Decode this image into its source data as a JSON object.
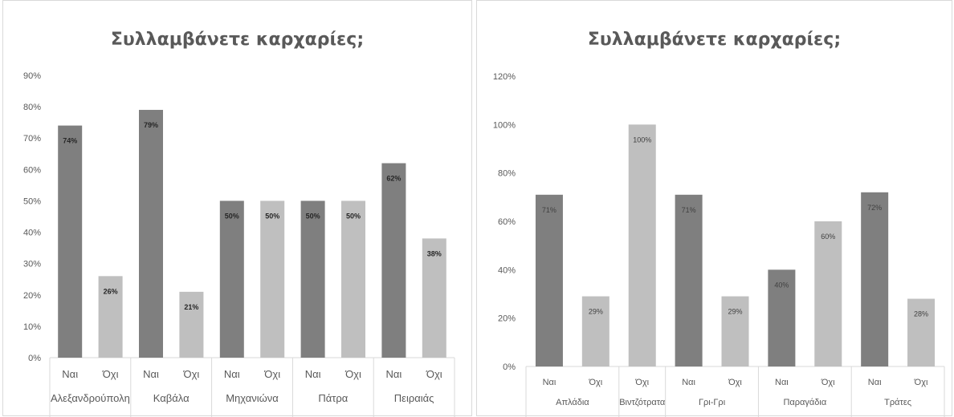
{
  "chart_data": [
    {
      "type": "bar",
      "title": "Συλλαμβάνετε καρχαρίες;",
      "ylim": [
        0,
        90
      ],
      "yticks": [
        "0%",
        "10%",
        "20%",
        "30%",
        "40%",
        "50%",
        "60%",
        "70%",
        "80%",
        "90%"
      ],
      "groups": [
        "Αλεξανδρούπολη",
        "Καβάλα",
        "Μηχανιώνα",
        "Πάτρα",
        "Πειραιάς"
      ],
      "categories": [
        "Ναι",
        "Όχι",
        "Ναι",
        "Όχι",
        "Ναι",
        "Όχι",
        "Ναι",
        "Όχι",
        "Ναι",
        "Όχι"
      ],
      "values": [
        74,
        26,
        79,
        21,
        50,
        50,
        50,
        50,
        62,
        38
      ],
      "data_labels": [
        "74%",
        "26%",
        "79%",
        "21%",
        "50%",
        "50%",
        "50%",
        "50%",
        "62%",
        "38%"
      ],
      "colors": [
        "#7f7f7f",
        "#bfbfbf",
        "#7f7f7f",
        "#bfbfbf",
        "#7f7f7f",
        "#bfbfbf",
        "#7f7f7f",
        "#bfbfbf",
        "#7f7f7f",
        "#bfbfbf"
      ],
      "grid": false,
      "legend": "none"
    },
    {
      "type": "bar",
      "title": "Συλλαμβάνετε καρχαρίες;",
      "ylim": [
        0,
        120
      ],
      "yticks": [
        "0%",
        "20%",
        "40%",
        "60%",
        "80%",
        "100%",
        "120%"
      ],
      "groups": [
        "Απλάδια",
        "Βιντζότρατα",
        "Γρι-Γρι",
        "Παραγάδια",
        "Τράτες"
      ],
      "group_sizes": [
        2,
        1,
        2,
        2,
        2
      ],
      "categories": [
        "Ναι",
        "Όχι",
        "Όχι",
        "Ναι",
        "Όχι",
        "Ναι",
        "Όχι",
        "Ναι",
        "Όχι"
      ],
      "values": [
        71,
        29,
        100,
        71,
        29,
        40,
        60,
        72,
        28
      ],
      "data_labels": [
        "71%",
        "29%",
        "100%",
        "71%",
        "29%",
        "40%",
        "60%",
        "72%",
        "28%"
      ],
      "colors": [
        "#7f7f7f",
        "#bfbfbf",
        "#bfbfbf",
        "#7f7f7f",
        "#bfbfbf",
        "#7f7f7f",
        "#bfbfbf",
        "#7f7f7f",
        "#bfbfbf"
      ],
      "grid": false,
      "legend": "none"
    }
  ]
}
